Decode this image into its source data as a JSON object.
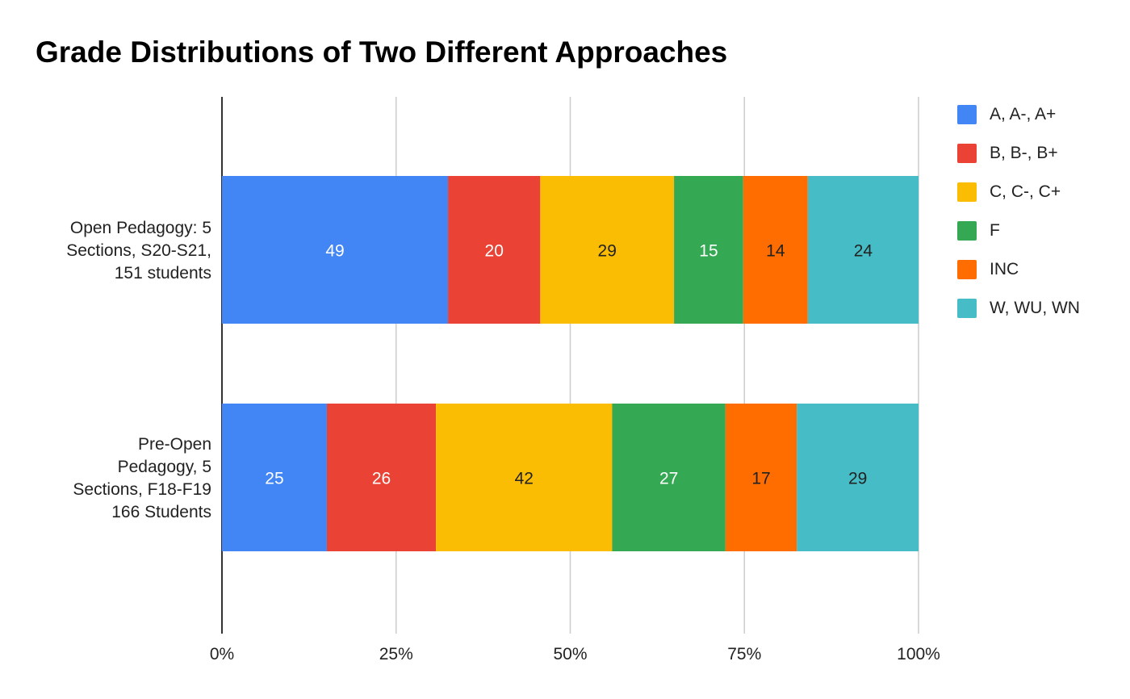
{
  "chart_data": {
    "type": "bar",
    "orientation": "horizontal",
    "stacking": "percent",
    "title": "Grade Distributions of Two Different Approaches",
    "categories": [
      "Open Pedagogy: 5 Sections, S20-S21, 151 students",
      "Pre-Open Pedagogy, 5 Sections, F18-F19 166 Students"
    ],
    "category_lines": [
      [
        "Open Pedagogy: 5",
        "Sections, S20-S21,",
        "151 students"
      ],
      [
        "Pre-Open",
        "Pedagogy, 5",
        "Sections, F18-F19",
        "166 Students"
      ]
    ],
    "series": [
      {
        "name": "A, A-, A+",
        "color": "#4285F4",
        "label_color": "#ffffff",
        "values": [
          49,
          25
        ]
      },
      {
        "name": "B, B-, B+",
        "color": "#EA4335",
        "label_color": "#ffffff",
        "values": [
          20,
          26
        ]
      },
      {
        "name": "C, C-, C+",
        "color": "#FBBC04",
        "label_color": "#222222",
        "values": [
          29,
          42
        ]
      },
      {
        "name": "F",
        "color": "#34A853",
        "label_color": "#ffffff",
        "values": [
          15,
          27
        ]
      },
      {
        "name": "INC",
        "color": "#FF6D01",
        "label_color": "#222222",
        "values": [
          14,
          17
        ]
      },
      {
        "name": "W, WU, WN",
        "color": "#46BDC6",
        "label_color": "#222222",
        "values": [
          24,
          29
        ]
      }
    ],
    "x_ticks": [
      "0%",
      "25%",
      "50%",
      "75%",
      "100%"
    ],
    "xlim": [
      0,
      100
    ],
    "grid": true,
    "legend_position": "right",
    "data_labels": true
  }
}
